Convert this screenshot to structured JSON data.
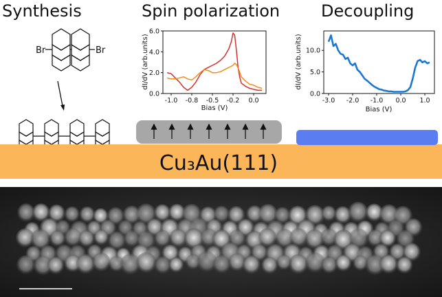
{
  "headers": {
    "synthesis": "Synthesis",
    "spin": "Spin polarization",
    "decoupling": "Decoupling"
  },
  "substrate": {
    "label": "Cu₃Au(111)",
    "color": "#fcb65a"
  },
  "precursor": {
    "left_atom": "Br",
    "right_atom": "Br"
  },
  "colors": {
    "spin_slab": "#a7a7a7",
    "decoupling_layer": "#5a7ef2",
    "series_red": "#d3312d",
    "series_orange": "#f28c1a",
    "series_blue": "#1a78d4"
  },
  "chart_data": [
    {
      "type": "line",
      "title": "",
      "xlabel": "Bias (V)",
      "ylabel": "dI/dV (arb.units)",
      "xlim": [
        -1.1,
        0.15
      ],
      "ylim": [
        0,
        6.0
      ],
      "xticks": [
        "-1.0",
        "-0.8",
        "-0.5",
        "-0.2",
        "0.0"
      ],
      "xtick_values": [
        -1.0,
        -0.75,
        -0.5,
        -0.25,
        0.0
      ],
      "yticks": [
        "0.0",
        "2.0",
        "4.0",
        "6.0"
      ],
      "ytick_values": [
        0,
        2,
        4,
        6
      ],
      "series": [
        {
          "color": "#d3312d",
          "x": [
            -1.05,
            -1.0,
            -0.95,
            -0.9,
            -0.85,
            -0.8,
            -0.75,
            -0.7,
            -0.65,
            -0.6,
            -0.55,
            -0.5,
            -0.45,
            -0.4,
            -0.35,
            -0.3,
            -0.27,
            -0.25,
            -0.23,
            -0.21,
            -0.19,
            -0.17,
            -0.15,
            -0.1,
            -0.05,
            0.0,
            0.05,
            0.1
          ],
          "y": [
            2.0,
            1.9,
            1.5,
            1.1,
            0.6,
            0.3,
            0.6,
            1.1,
            1.8,
            2.3,
            2.5,
            2.7,
            2.9,
            3.2,
            3.6,
            4.3,
            5.0,
            5.8,
            5.6,
            4.2,
            2.6,
            1.6,
            1.0,
            0.7,
            0.5,
            0.4,
            0.3,
            0.3
          ]
        },
        {
          "color": "#f28c1a",
          "x": [
            -1.05,
            -1.0,
            -0.95,
            -0.9,
            -0.85,
            -0.8,
            -0.75,
            -0.7,
            -0.65,
            -0.6,
            -0.55,
            -0.5,
            -0.45,
            -0.4,
            -0.35,
            -0.3,
            -0.25,
            -0.23,
            -0.21,
            -0.18,
            -0.15,
            -0.1,
            -0.05,
            0.0,
            0.05,
            0.1
          ],
          "y": [
            1.5,
            1.4,
            1.4,
            1.5,
            1.6,
            1.4,
            1.3,
            1.6,
            2.0,
            2.3,
            2.2,
            2.0,
            2.0,
            2.1,
            2.3,
            2.5,
            2.7,
            2.9,
            2.8,
            2.3,
            1.6,
            1.2,
            0.9,
            0.8,
            0.6,
            0.5
          ]
        }
      ]
    },
    {
      "type": "line",
      "title": "",
      "xlabel": "Bias (V)",
      "ylabel": "dI/dV (arb.units)",
      "xlim": [
        -3.2,
        1.4
      ],
      "ylim": [
        0,
        14.5
      ],
      "xticks": [
        "-3.0",
        "-2.0",
        "-1.0",
        "0.0",
        "1.0"
      ],
      "xtick_values": [
        -3.0,
        -2.0,
        -1.0,
        0.0,
        1.0
      ],
      "yticks": [
        "0.0",
        "5.0",
        "10.0"
      ],
      "ytick_values": [
        0,
        5,
        10
      ],
      "series": [
        {
          "color": "#1a78d4",
          "x": [
            -3.0,
            -2.9,
            -2.8,
            -2.7,
            -2.6,
            -2.5,
            -2.4,
            -2.3,
            -2.2,
            -2.1,
            -2.0,
            -1.9,
            -1.8,
            -1.7,
            -1.6,
            -1.5,
            -1.4,
            -1.3,
            -1.2,
            -1.1,
            -1.0,
            -0.9,
            -0.8,
            -0.7,
            -0.6,
            -0.5,
            -0.4,
            -0.3,
            -0.2,
            -0.1,
            0.0,
            0.1,
            0.2,
            0.3,
            0.4,
            0.5,
            0.6,
            0.7,
            0.8,
            0.9,
            1.0,
            1.1,
            1.2
          ],
          "y": [
            12.0,
            13.5,
            11.0,
            11.5,
            10.0,
            9.2,
            9.0,
            8.0,
            8.3,
            7.0,
            6.5,
            7.0,
            5.5,
            5.0,
            4.2,
            3.4,
            3.0,
            2.5,
            2.0,
            1.6,
            1.3,
            1.0,
            0.9,
            0.7,
            0.6,
            0.5,
            0.5,
            0.4,
            0.4,
            0.4,
            0.4,
            0.4,
            0.5,
            0.8,
            1.5,
            3.5,
            6.0,
            7.5,
            7.8,
            7.2,
            7.5,
            7.0,
            7.2
          ]
        }
      ]
    }
  ]
}
